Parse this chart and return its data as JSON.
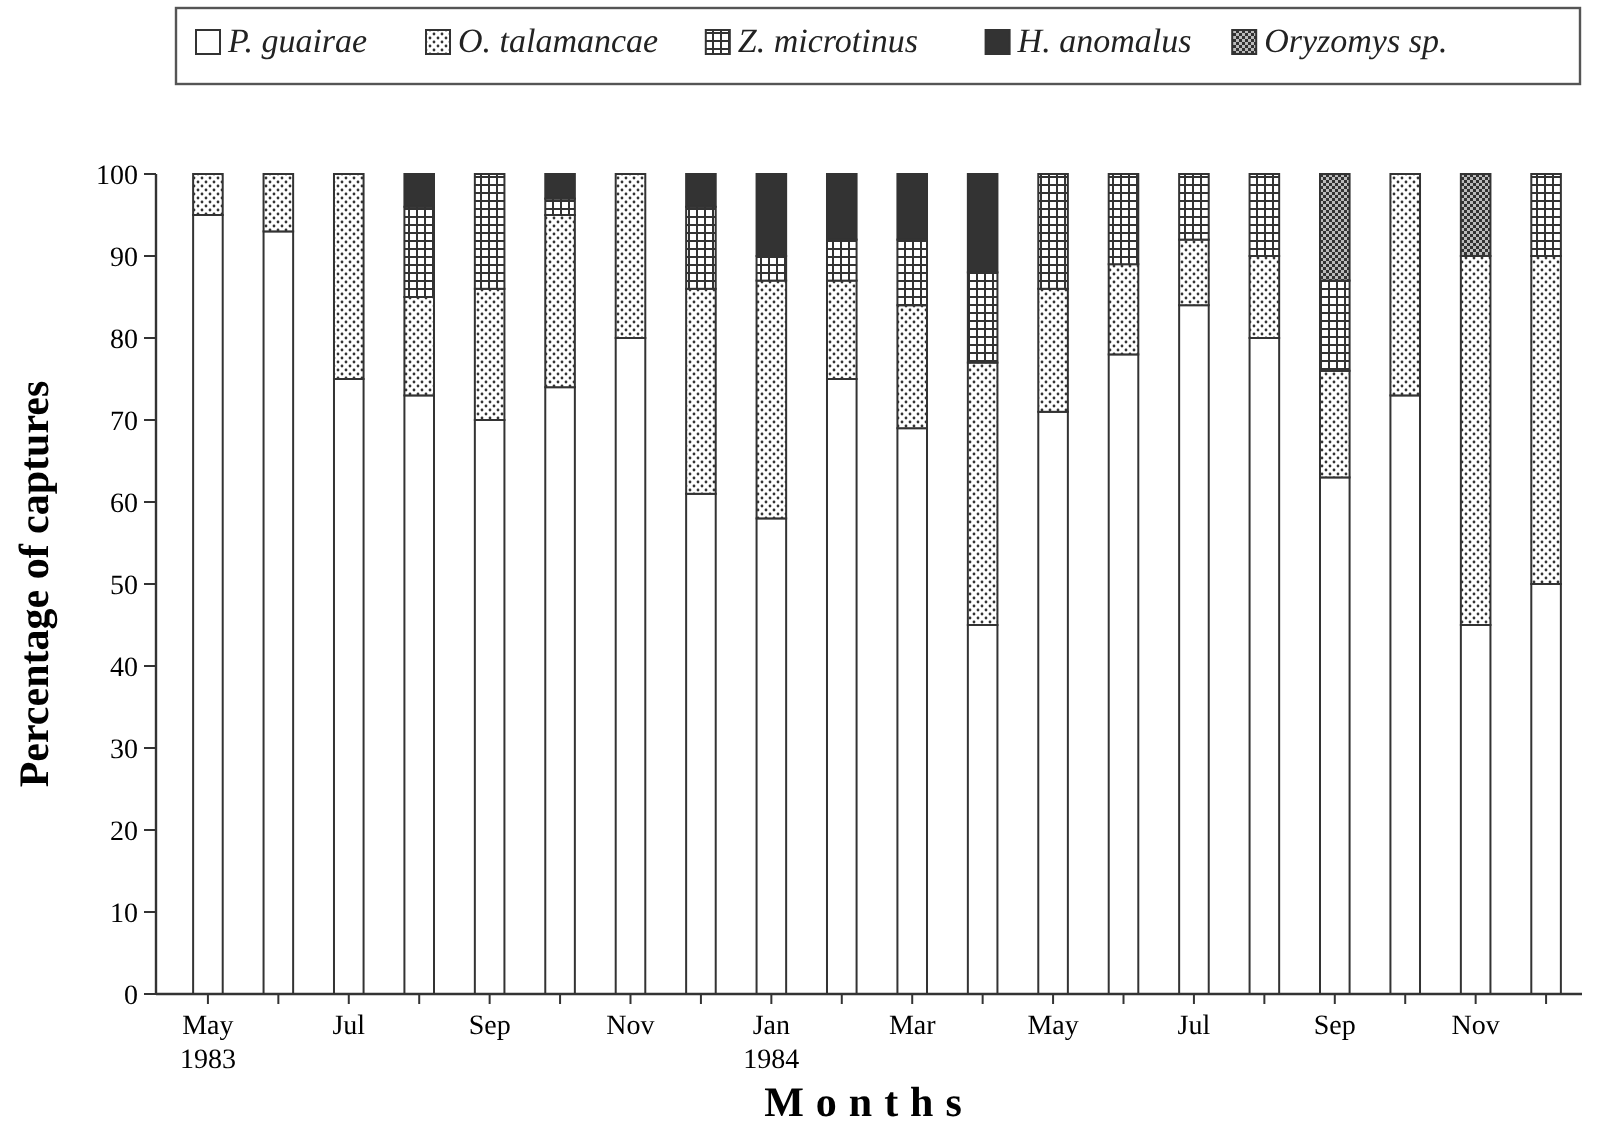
{
  "chart_data": {
    "type": "bar",
    "stacked": true,
    "xlabel": "Months",
    "ylabel": "Percentage of captures",
    "legend": "top",
    "categories": [
      "May 1983",
      null,
      "Jul",
      null,
      "Sep",
      null,
      "Nov",
      null,
      "Jan 1984",
      null,
      "Mar",
      null,
      "May",
      null,
      "Jul",
      null,
      "Sep",
      null,
      "Nov",
      null
    ],
    "ylim": [
      0,
      100
    ],
    "yticks": [
      0,
      10,
      20,
      30,
      40,
      50,
      60,
      70,
      80,
      90,
      100
    ],
    "series": [
      {
        "name": "P. guairae",
        "color": "#ffffff",
        "values": [
          95,
          93,
          75,
          73,
          70,
          74,
          80,
          61,
          58,
          75,
          69,
          45,
          71,
          78,
          84,
          80,
          63,
          73,
          45,
          50
        ]
      },
      {
        "name": "O. talamancae",
        "color": "#333333",
        "values": [
          5,
          7,
          25,
          12,
          16,
          21,
          20,
          25,
          29,
          12,
          15,
          32,
          15,
          11,
          8,
          10,
          13,
          27,
          45,
          40
        ]
      },
      {
        "name": "Z. microtinus",
        "color": "#333333",
        "values": [
          null,
          null,
          null,
          11,
          14,
          2,
          null,
          10,
          3,
          5,
          8,
          11,
          14,
          11,
          8,
          10,
          11,
          null,
          null,
          10
        ]
      },
      {
        "name": "H. anomalus",
        "color": "#333333",
        "values": [
          null,
          null,
          null,
          4,
          null,
          3,
          null,
          4,
          10,
          8,
          8,
          12,
          null,
          null,
          null,
          null,
          null,
          null,
          null,
          null
        ]
      },
      {
        "name": "Oryzomys sp.",
        "color": "#333333",
        "values": [
          null,
          null,
          null,
          null,
          null,
          null,
          null,
          null,
          null,
          null,
          null,
          null,
          null,
          null,
          null,
          null,
          13,
          null,
          10,
          null
        ]
      }
    ]
  }
}
